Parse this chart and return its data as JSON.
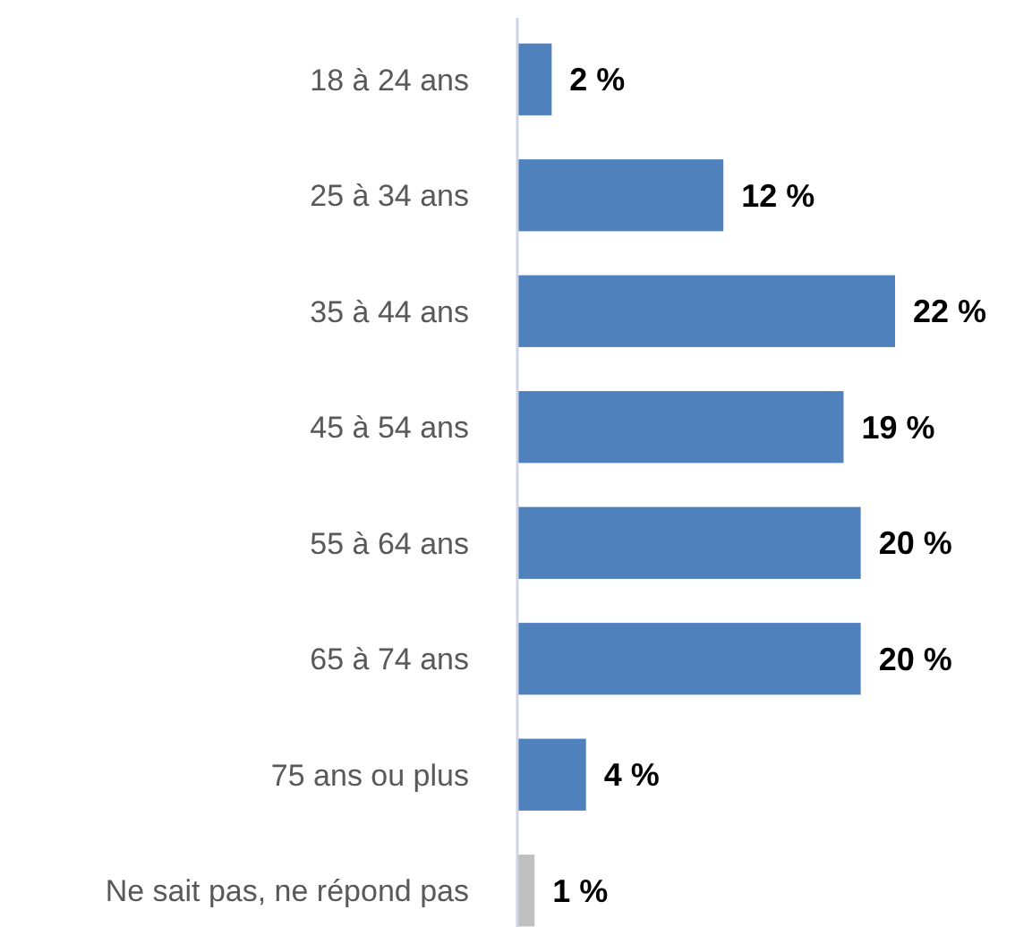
{
  "chart_data": {
    "type": "bar",
    "orientation": "horizontal",
    "categories": [
      "18 à 24 ans",
      "25 à 34 ans",
      "35 à 44 ans",
      "45 à 54 ans",
      "55 à 64 ans",
      "65 à 74 ans",
      "75 ans ou plus",
      "Ne sait pas, ne répond pas"
    ],
    "values": [
      2,
      12,
      22,
      19,
      20,
      20,
      4,
      1
    ],
    "colors": [
      "#4f81bd",
      "#4f81bd",
      "#4f81bd",
      "#4f81bd",
      "#4f81bd",
      "#4f81bd",
      "#4f81bd",
      "#bfbfbf"
    ],
    "value_labels": [
      "2 %",
      "12 %",
      "22 %",
      "19 %",
      "20 %",
      "20 %",
      "4 %",
      "1 %"
    ]
  }
}
